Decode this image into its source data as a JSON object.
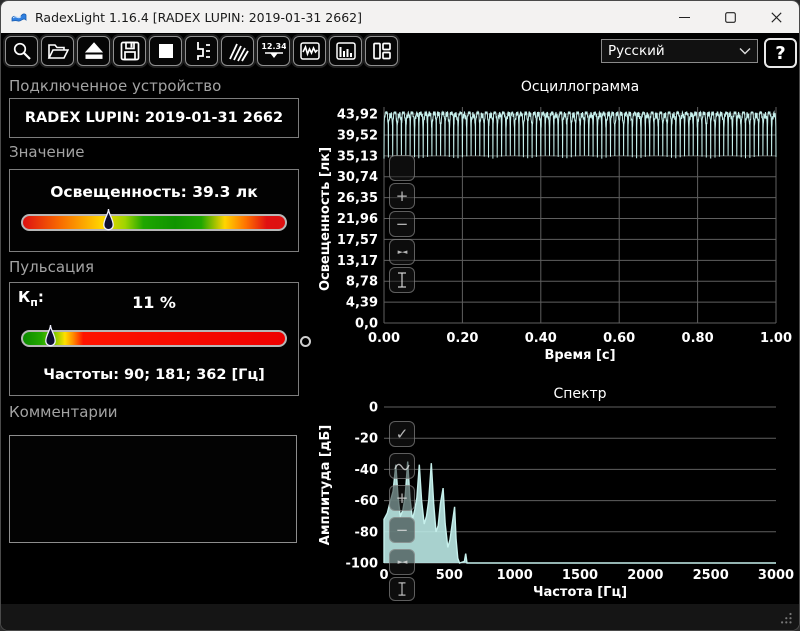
{
  "window": {
    "title": "RadexLight 1.16.4 [RADEX LUPIN: 2019-01-31 2662]"
  },
  "toolbar": {
    "language": "Русский",
    "help": "?",
    "buttons": [
      "zoom",
      "open-file",
      "eject",
      "save",
      "stop",
      "trigger-settings",
      "sweep",
      "numeric-display",
      "oscillogram-view",
      "spectrum-view",
      "layout"
    ]
  },
  "left_panel": {
    "device": {
      "label": "Подключенное устройство",
      "name": "RADEX LUPIN: 2019-01-31 2662"
    },
    "value": {
      "label": "Значение",
      "reading": "Освещенность: 39.3 лк",
      "marker_percent": 33
    },
    "pulsation": {
      "label": "Пульсация",
      "kp_base": "К",
      "kp_sub": "п",
      "kp_colon": ":",
      "value": "11 %",
      "marker_percent": 11,
      "frequencies": "Частоты: 90; 181; 362 [Гц]"
    },
    "comments": {
      "label": "Комментарии",
      "text": ""
    }
  },
  "overlays": {
    "oscillogram": [
      "select-area",
      "zoom-in",
      "zoom-out",
      "fit",
      "cursor"
    ],
    "spectrum": [
      "enable-markers",
      "smooth-mode",
      "zoom-in",
      "zoom-out",
      "fit",
      "cursor"
    ]
  },
  "colors": {
    "trace": "#c6f0ec",
    "spectrum_fill": "#bfeeea",
    "grid": "#5f5f5f",
    "accent_green": "#0f9400",
    "accent_red": "#e01010",
    "accent_yellow": "#ffd500"
  },
  "chart_data": [
    {
      "type": "line",
      "title": "Осциллограмма",
      "xlabel": "Время [с]",
      "ylabel": "Освещенность [лк]",
      "xlim": [
        0,
        1
      ],
      "ylim": [
        0,
        43.92
      ],
      "grid": true,
      "legend": "none",
      "x_tick_values": [
        0,
        0.2,
        0.4,
        0.6,
        0.8,
        1.0
      ],
      "x_tick_labels": [
        "0.00",
        "0.20",
        "0.40",
        "0.60",
        "0.80",
        "1.00"
      ],
      "y_tick_values": [
        0,
        4.39,
        8.78,
        13.17,
        17.57,
        21.96,
        26.35,
        30.74,
        35.13,
        39.52,
        43.92
      ],
      "y_tick_labels": [
        "0,0",
        "4,39",
        "8,78",
        "13,17",
        "17,57",
        "21,96",
        "26,35",
        "30,74",
        "35,13",
        "39,52",
        "43,92"
      ],
      "series": [
        {
          "name": "illuminance",
          "waveform": "pulsating-narrow-dips",
          "frequency_hz": 90,
          "min_lx": 34.9,
          "max_lx": 43.92,
          "mean_lx": 39.3,
          "duration_s": 1
        }
      ]
    },
    {
      "type": "area",
      "title": "Спектр",
      "xlabel": "Частота [Гц]",
      "ylabel": "Амплитуда [дБ]",
      "xlim": [
        0,
        3000
      ],
      "ylim": [
        -100,
        0
      ],
      "grid": true,
      "legend": "none",
      "x_tick_values": [
        0,
        500,
        1000,
        1500,
        2000,
        2500,
        3000
      ],
      "x_tick_labels": [
        "0",
        "500",
        "1000",
        "1500",
        "2000",
        "2500",
        "3000"
      ],
      "y_tick_values": [
        0,
        -20,
        -40,
        -60,
        -80,
        -100
      ],
      "y_tick_labels": [
        "0",
        "-20",
        "-40",
        "-60",
        "-80",
        "-100"
      ],
      "peaks_hz": [
        90,
        181,
        270,
        362,
        452,
        540
      ],
      "points": [
        [
          0,
          -72
        ],
        [
          25,
          -68
        ],
        [
          50,
          -60
        ],
        [
          70,
          -54
        ],
        [
          90,
          -37
        ],
        [
          108,
          -58
        ],
        [
          125,
          -70
        ],
        [
          145,
          -66
        ],
        [
          162,
          -57
        ],
        [
          181,
          -35
        ],
        [
          198,
          -58
        ],
        [
          218,
          -72
        ],
        [
          235,
          -66
        ],
        [
          252,
          -58
        ],
        [
          270,
          -37
        ],
        [
          288,
          -60
        ],
        [
          308,
          -75
        ],
        [
          325,
          -70
        ],
        [
          342,
          -60
        ],
        [
          362,
          -36
        ],
        [
          380,
          -62
        ],
        [
          398,
          -80
        ],
        [
          415,
          -76
        ],
        [
          432,
          -62
        ],
        [
          452,
          -52
        ],
        [
          468,
          -75
        ],
        [
          488,
          -90
        ],
        [
          505,
          -85
        ],
        [
          522,
          -75
        ],
        [
          540,
          -64
        ],
        [
          552,
          -85
        ],
        [
          565,
          -97
        ],
        [
          578,
          -100
        ],
        [
          615,
          -99
        ],
        [
          625,
          -94
        ],
        [
          635,
          -100
        ],
        [
          3000,
          -100
        ]
      ]
    }
  ]
}
